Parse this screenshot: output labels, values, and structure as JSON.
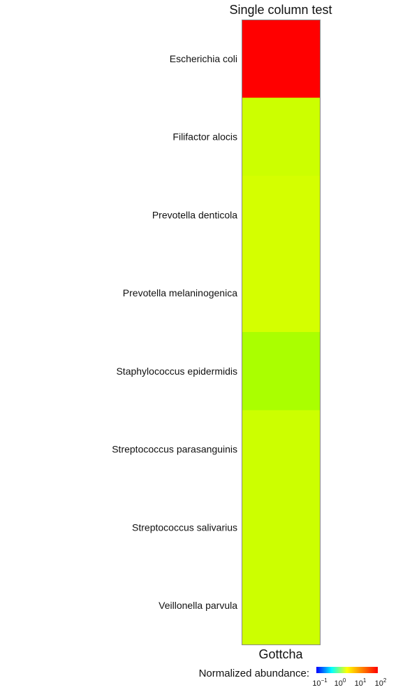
{
  "chart_data": {
    "type": "heatmap",
    "title": "Single column test",
    "columns": [
      "Gottcha"
    ],
    "rows": [
      "Escherichia coli",
      "Filifactor alocis",
      "Prevotella denticola",
      "Prevotella melaninogenica",
      "Staphylococcus epidermidis",
      "Streptococcus parasanguinis",
      "Streptococcus salivarius",
      "Veillonella parvula"
    ],
    "values": [
      [
        100
      ],
      [
        5
      ],
      [
        4.5
      ],
      [
        4.5
      ],
      [
        2.5
      ],
      [
        5
      ],
      [
        5
      ],
      [
        5
      ]
    ],
    "cell_colors": [
      "#ff0000",
      "#ccff00",
      "#d4ff00",
      "#d4ff00",
      "#aaff00",
      "#ccff00",
      "#ccff00",
      "#ccff00"
    ],
    "scale": "log",
    "legend": {
      "label": "Normalized abundance:",
      "placement": "bottom",
      "ticks": [
        {
          "base": "10",
          "exp": "−1"
        },
        {
          "base": "10",
          "exp": "0"
        },
        {
          "base": "10",
          "exp": "1"
        },
        {
          "base": "10",
          "exp": "2"
        }
      ],
      "gradient": [
        "#0000ff",
        "#00ffff",
        "#ffff00",
        "#ff8000",
        "#ff0000"
      ]
    }
  }
}
